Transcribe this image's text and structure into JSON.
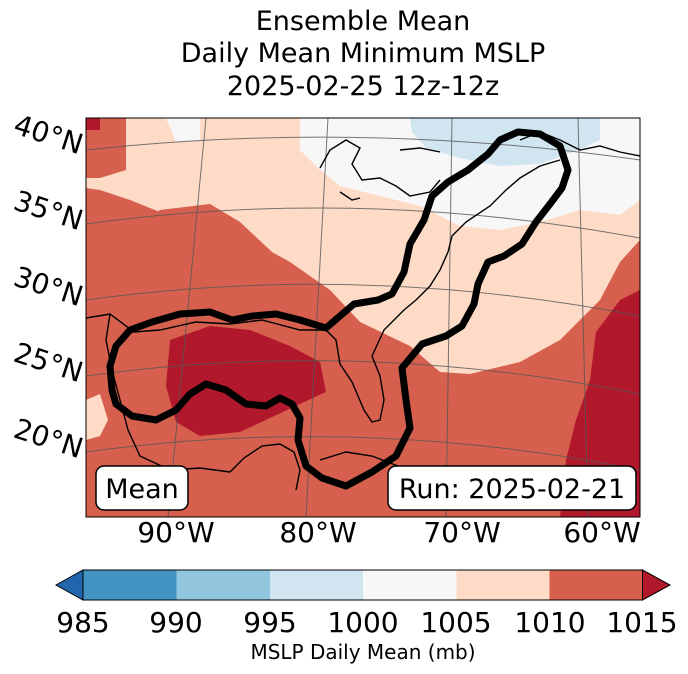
{
  "title": {
    "line1": "Ensemble Mean",
    "line2": "Daily Mean Minimum MSLP",
    "line3": "2025-02-25 12z-12z"
  },
  "map": {
    "lat_labels": [
      "40°N",
      "35°N",
      "30°N",
      "25°N",
      "20°N"
    ],
    "lon_labels": [
      "90°W",
      "80°W",
      "70°W",
      "60°W"
    ],
    "mean_box_label": "Mean",
    "run_box_label": "Run: 2025-02-21"
  },
  "colorbar": {
    "ticks": [
      "985",
      "990",
      "995",
      "1000",
      "1005",
      "1010",
      "1015"
    ],
    "label": "MSLP Daily Mean (mb)",
    "colors": {
      "below": "#2166ac",
      "985_990": "#4393c3",
      "990_995": "#92c5de",
      "995_1000": "#d1e5f0",
      "1000_1005": "#f7f7f7",
      "1005_1010": "#fddbc7",
      "1010_1015": "#d6604d",
      "above": "#b2182b"
    }
  }
}
